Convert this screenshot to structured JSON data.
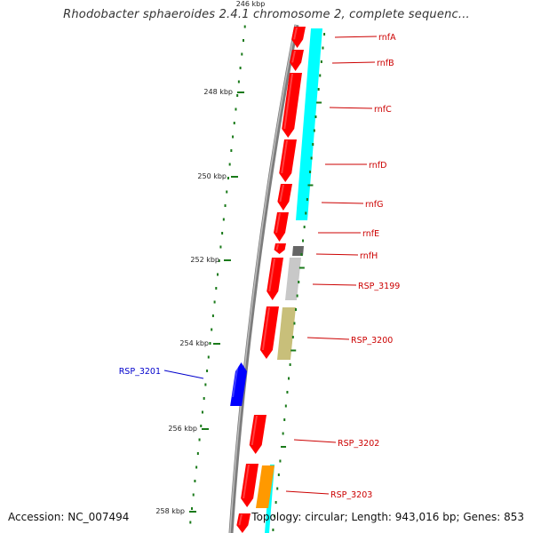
{
  "title": "Rhodobacter sphaeroides 2.4.1 chromosome 2, complete sequenc...",
  "footer": {
    "accession": "Accession: NC_007494",
    "summary": "Topology: circular; Length: 943,016 bp; Genes: 853"
  },
  "colors": {
    "backbone": "#888888",
    "forward_gene": "#ff0000",
    "reverse_gene": "#0000ff",
    "forward_label": "#cc0000",
    "reverse_label": "#0000cc",
    "tick": "#1a7a1a"
  },
  "scale": {
    "ticks": [
      "246 kbp",
      "248 kbp",
      "250 kbp",
      "252 kbp",
      "254 kbp",
      "256 kbp",
      "258 kbp"
    ]
  },
  "genes": [
    {
      "label": "rnfA",
      "strand": "forward"
    },
    {
      "label": "rnfB",
      "strand": "forward"
    },
    {
      "label": "rnfC",
      "strand": "forward"
    },
    {
      "label": "rnfD",
      "strand": "forward"
    },
    {
      "label": "rnfG",
      "strand": "forward"
    },
    {
      "label": "rnfE",
      "strand": "forward"
    },
    {
      "label": "rnfH",
      "strand": "forward"
    },
    {
      "label": "RSP_3199",
      "strand": "forward"
    },
    {
      "label": "RSP_3200",
      "strand": "forward"
    },
    {
      "label": "RSP_3201",
      "strand": "reverse"
    },
    {
      "label": "RSP_3202",
      "strand": "forward"
    },
    {
      "label": "RSP_3203",
      "strand": "forward"
    }
  ],
  "feature_colors": [
    "#00ffff",
    "#666666",
    "#c8c8c8",
    "#c8bf7a",
    "#ff9900"
  ]
}
